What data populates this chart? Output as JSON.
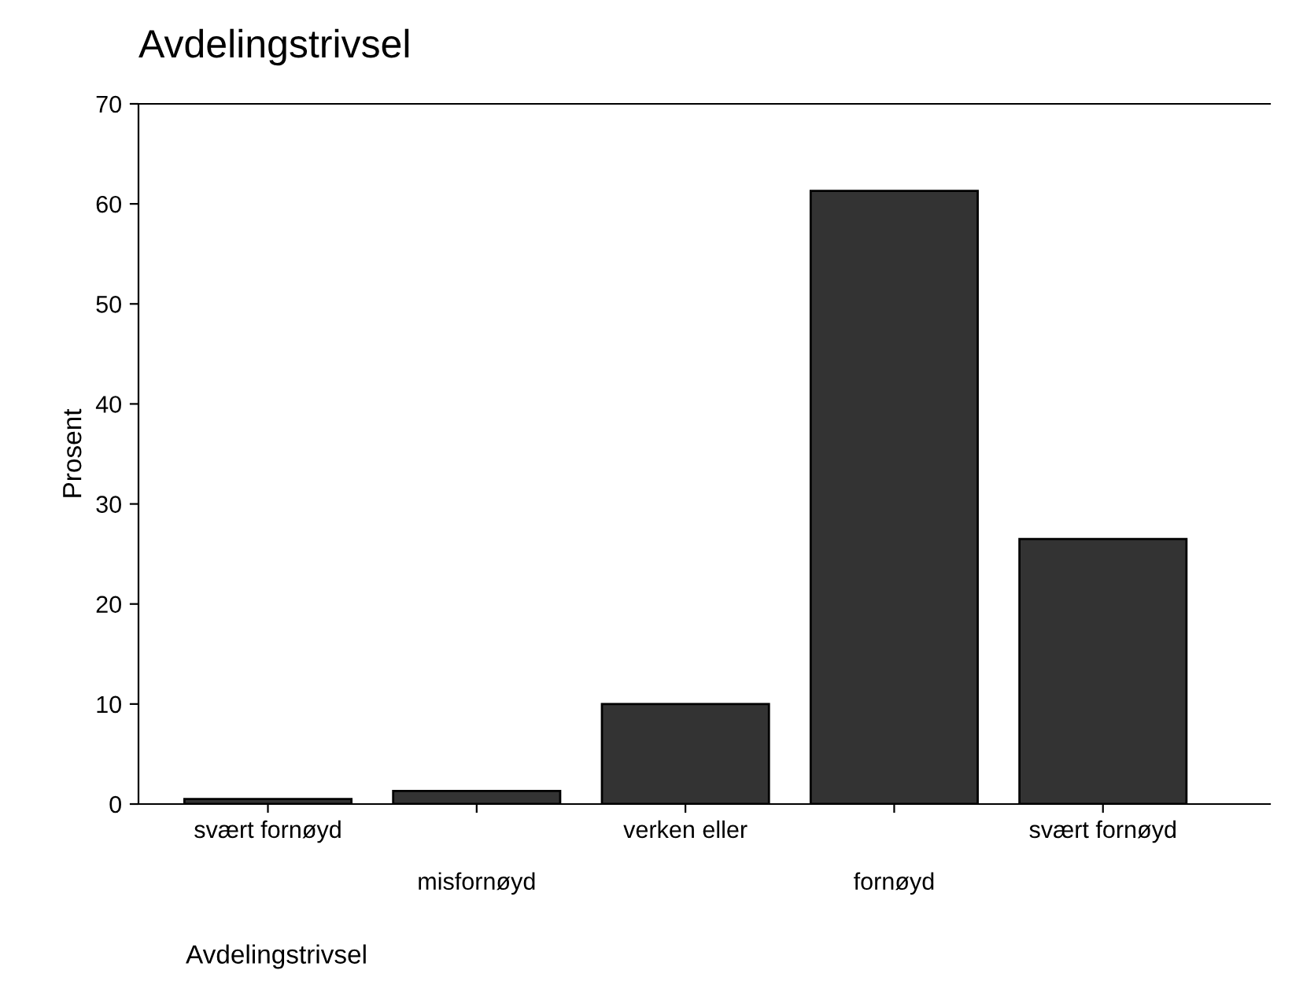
{
  "chart_data": {
    "type": "bar",
    "title": "Avdelingstrivsel",
    "xlabel": "Avdelingstrivsel",
    "ylabel": "Prosent",
    "categories": [
      "svært fornøyd",
      "misfornøyd",
      "verken eller",
      "fornøyd",
      "svært fornøyd"
    ],
    "values": [
      0.5,
      1.3,
      10.0,
      61.3,
      26.5
    ],
    "color": "#333333",
    "ylim": [
      0,
      70
    ],
    "yticks": [
      0,
      10,
      20,
      30,
      40,
      50,
      60,
      70
    ],
    "grid": false,
    "legend": false
  }
}
